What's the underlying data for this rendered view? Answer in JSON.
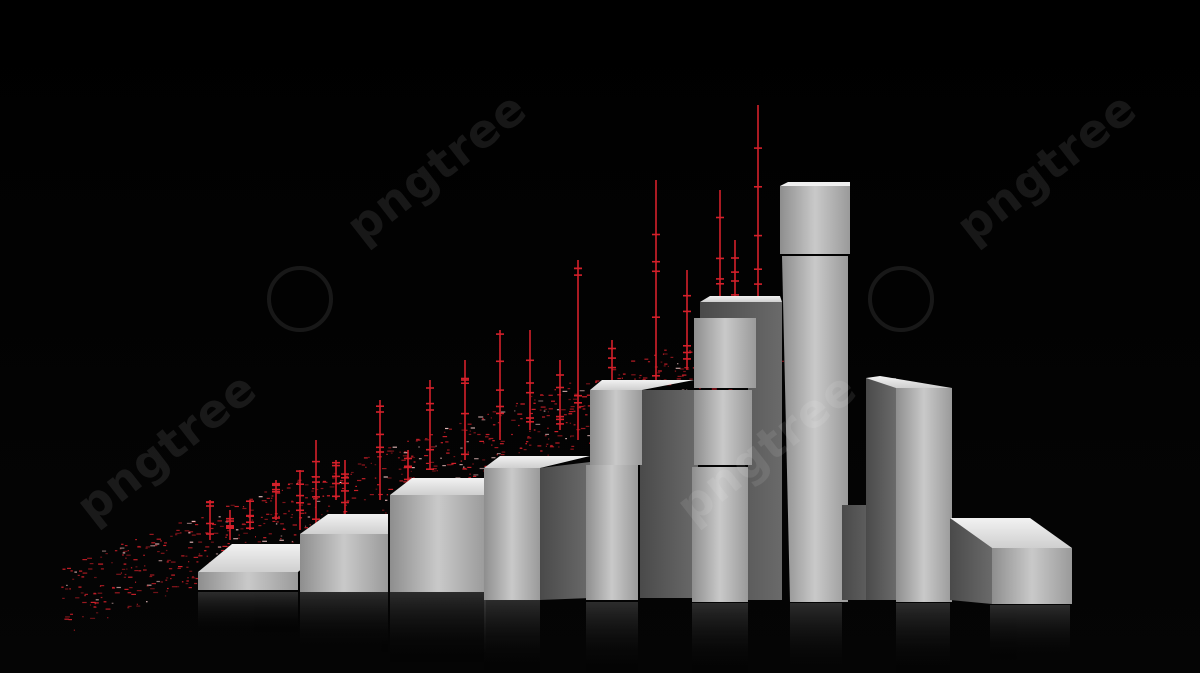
{
  "watermark": {
    "text": "pngtree"
  },
  "scene": {
    "description_colors": {
      "background": "#000000",
      "bar_light": "#d8d8d8",
      "bar_mid": "#9a9a9a",
      "bar_dark": "#5a5a5a",
      "accent_red": "#d4202a"
    }
  }
}
